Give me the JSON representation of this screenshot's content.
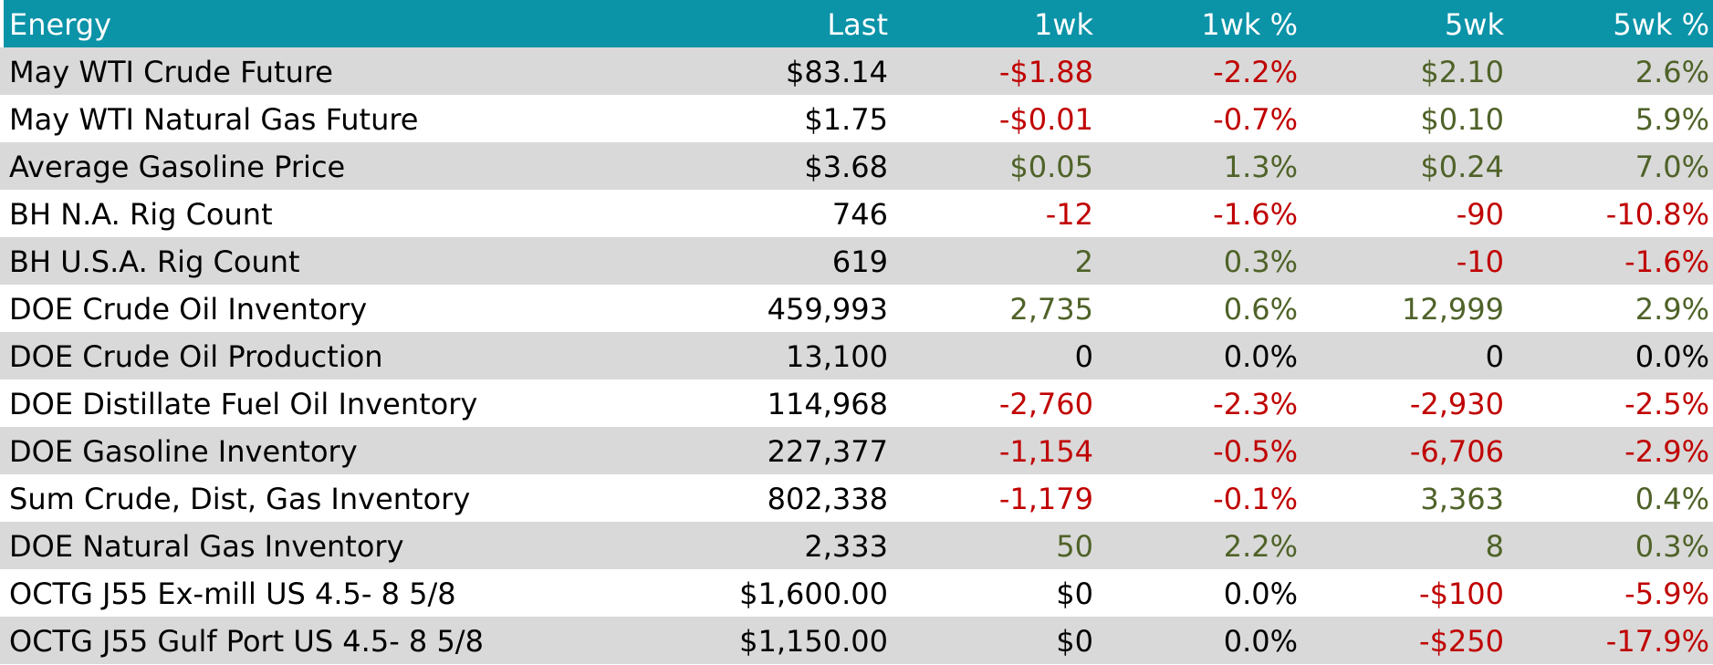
{
  "table": {
    "header": [
      "Energy",
      "Last",
      "1wk",
      "1wk %",
      "5wk",
      "5wk %"
    ],
    "rows": [
      [
        "May WTI Crude Future",
        "$83.14",
        "-$1.88",
        "-2.2%",
        "$2.10",
        "2.6%"
      ],
      [
        "May WTI Natural Gas Future",
        "$1.75",
        "-$0.01",
        "-0.7%",
        "$0.10",
        "5.9%"
      ],
      [
        "Average Gasoline Price",
        "$3.68",
        "$0.05",
        "1.3%",
        "$0.24",
        "7.0%"
      ],
      [
        "BH N.A. Rig Count",
        "746",
        "-12",
        "-1.6%",
        "-90",
        "-10.8%"
      ],
      [
        "BH U.S.A. Rig Count",
        "619",
        "2",
        "0.3%",
        "-10",
        "-1.6%"
      ],
      [
        "DOE Crude Oil Inventory",
        "459,993",
        "2,735",
        "0.6%",
        "12,999",
        "2.9%"
      ],
      [
        "DOE Crude Oil Production",
        "13,100",
        "0",
        "0.0%",
        "0",
        "0.0%"
      ],
      [
        "DOE Distillate Fuel Oil Inventory",
        "114,968",
        "-2,760",
        "-2.3%",
        "-2,930",
        "-2.5%"
      ],
      [
        "DOE Gasoline Inventory",
        "227,377",
        "-1,154",
        "-0.5%",
        "-6,706",
        "-2.9%"
      ],
      [
        "Sum Crude, Dist, Gas Inventory",
        "802,338",
        "-1,179",
        "-0.1%",
        "3,363",
        "0.4%"
      ],
      [
        "DOE Natural Gas Inventory",
        "2,333",
        "50",
        "2.2%",
        "8",
        "0.3%"
      ],
      [
        "OCTG J55 Ex-mill US 4.5- 8 5/8",
        "$1,600.00",
        "$0",
        "0.0%",
        "-$100",
        "-5.9%"
      ],
      [
        "OCTG J55 Gulf Port US 4.5- 8 5/8",
        "$1,150.00",
        "$0",
        "0.0%",
        "-$250",
        "-17.9%"
      ]
    ]
  }
}
